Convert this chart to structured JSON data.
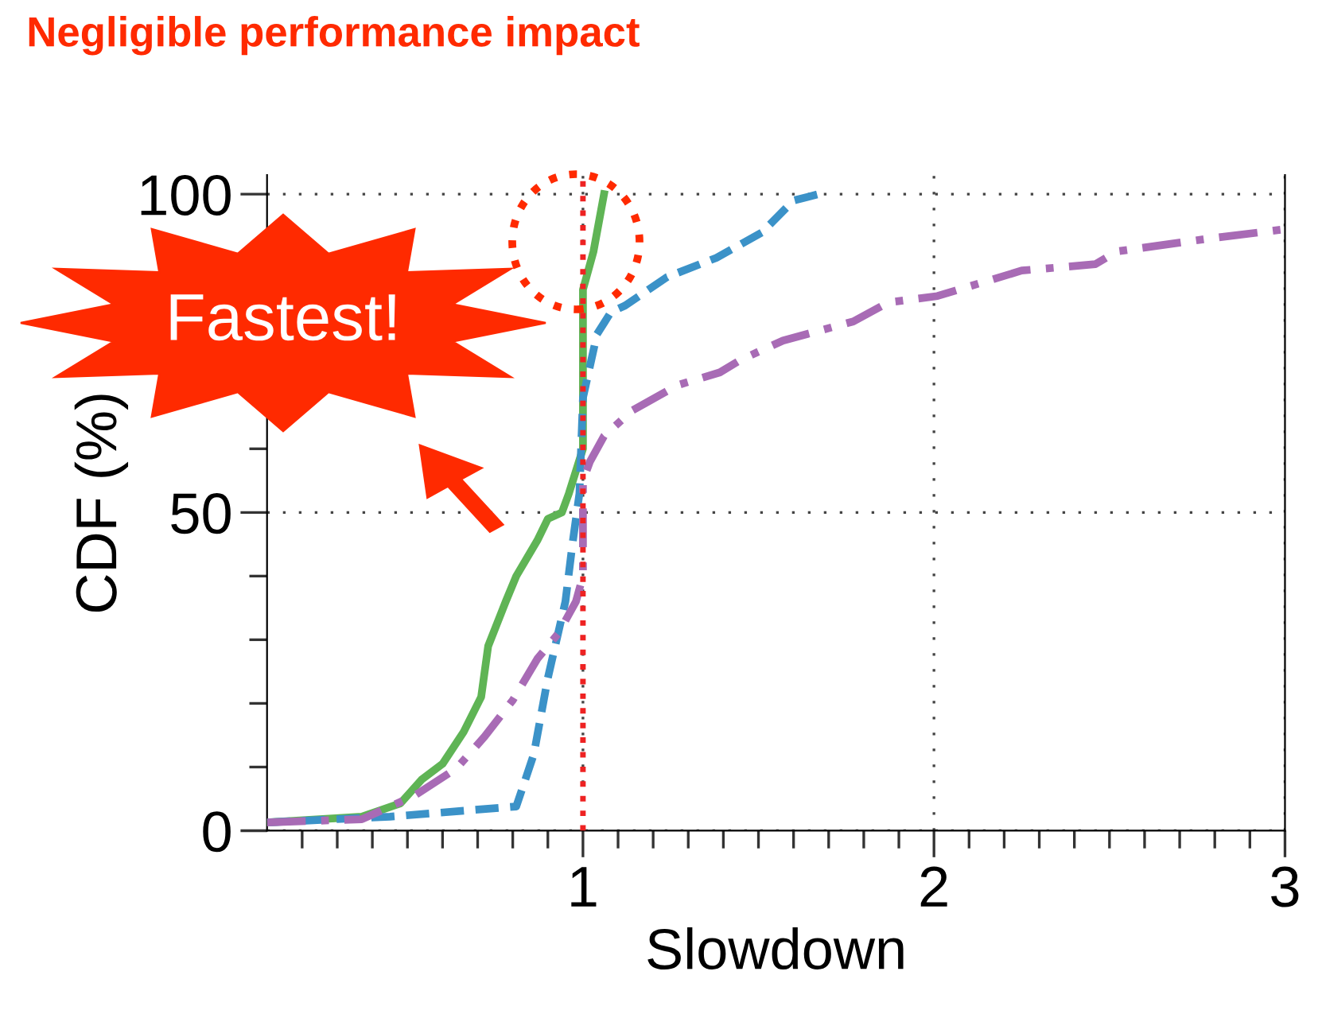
{
  "chart_data": {
    "type": "line",
    "title": "Negligible performance impact",
    "xlabel": "Slowdown",
    "ylabel": "CDF (%)",
    "annotations": [
      "Fastest!"
    ],
    "xlim": [
      0.1,
      3
    ],
    "ylim": [
      0,
      103
    ],
    "xticks": [
      {
        "value": 0.2,
        "label": null
      },
      {
        "value": 0.3,
        "label": null
      },
      {
        "value": 0.4,
        "label": null
      },
      {
        "value": 0.5,
        "label": null
      },
      {
        "value": 0.6,
        "label": null
      },
      {
        "value": 0.7,
        "label": null
      },
      {
        "value": 0.8,
        "label": null
      },
      {
        "value": 0.9,
        "label": null
      },
      1,
      {
        "value": 1.1,
        "label": null
      },
      {
        "value": 1.2,
        "label": null
      },
      {
        "value": 1.3,
        "label": null
      },
      {
        "value": 1.4,
        "label": null
      },
      {
        "value": 1.5,
        "label": null
      },
      {
        "value": 1.6,
        "label": null
      },
      {
        "value": 1.7,
        "label": null
      },
      {
        "value": 1.8,
        "label": null
      },
      {
        "value": 1.9,
        "label": null
      },
      2,
      {
        "value": 2.1,
        "label": null
      },
      {
        "value": 2.2,
        "label": null
      },
      {
        "value": 2.3,
        "label": null
      },
      {
        "value": 2.4,
        "label": null
      },
      {
        "value": 2.5,
        "label": null
      },
      {
        "value": 2.6,
        "label": null
      },
      {
        "value": 2.7,
        "label": null
      },
      {
        "value": 2.8,
        "label": null
      },
      {
        "value": 2.9,
        "label": null
      },
      3
    ],
    "yticks": [
      0,
      {
        "value": 10,
        "label": null
      },
      {
        "value": 20,
        "label": null
      },
      {
        "value": 30,
        "label": null
      },
      {
        "value": 40,
        "label": null
      },
      50,
      {
        "value": 60,
        "label": null
      },
      {
        "value": 70,
        "label": null
      },
      {
        "value": 80,
        "label": null
      },
      {
        "value": 90,
        "label": null
      },
      100
    ],
    "grid": true,
    "legend": false,
    "marker": "none",
    "ref_lines": [
      {
        "axis": "x",
        "value": 1,
        "color": "#ee2222",
        "line_style": "dotted"
      }
    ],
    "series": [
      {
        "color": "#5fb455",
        "line_style": "solid",
        "x": [
          0.1,
          0.37,
          0.48,
          0.54,
          0.6,
          0.66,
          0.71,
          0.73,
          0.78,
          0.81,
          0.87,
          0.9,
          0.94,
          0.96,
          1.0,
          1.0,
          1.0,
          1.03,
          1.06
        ],
        "values": [
          1.3,
          2.2,
          4.3,
          8,
          10.5,
          15.5,
          21,
          29,
          36,
          40,
          45.6,
          49,
          50,
          53,
          60,
          78,
          85,
          91,
          100
        ]
      },
      {
        "color": "#3b92c8",
        "line_style": "dashed",
        "x": [
          0.1,
          0.45,
          0.81,
          0.86,
          0.9,
          0.95,
          0.97,
          0.99,
          1.0,
          1.04,
          1.08,
          1.12,
          1.24,
          1.38,
          1.51,
          1.6,
          1.67
        ],
        "values": [
          1.3,
          2.2,
          3.8,
          12,
          24,
          36,
          45,
          53,
          68,
          78,
          81.5,
          82.5,
          87,
          90,
          94,
          99,
          100
        ]
      },
      {
        "color": "#a86bb5",
        "line_style": "dashdot",
        "x": [
          0.1,
          0.37,
          0.52,
          0.64,
          0.72,
          0.8,
          0.87,
          0.93,
          0.98,
          1.0,
          1.0,
          1.02,
          1.06,
          1.14,
          1.27,
          1.39,
          1.45,
          1.57,
          1.77,
          1.87,
          2.01,
          2.25,
          2.46,
          2.52,
          2.78,
          3.0
        ],
        "values": [
          1.3,
          1.8,
          5.5,
          9.8,
          14.8,
          20.5,
          27,
          31,
          36,
          40,
          55,
          58,
          62,
          66,
          70,
          72,
          74,
          77,
          80,
          83,
          84,
          88,
          89,
          91,
          93,
          94.5
        ]
      }
    ]
  }
}
